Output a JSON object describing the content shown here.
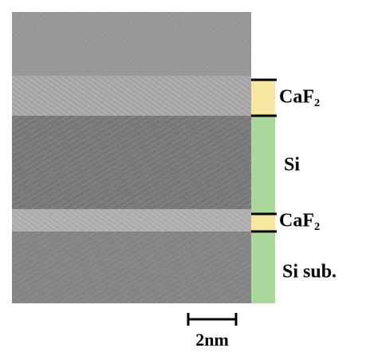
{
  "layers": [
    {
      "label": "CaF₂"
    },
    {
      "label": "Si"
    },
    {
      "label": "CaF₂"
    },
    {
      "label": "Si sub."
    }
  ],
  "scale_bar": {
    "label": "2nm"
  }
}
